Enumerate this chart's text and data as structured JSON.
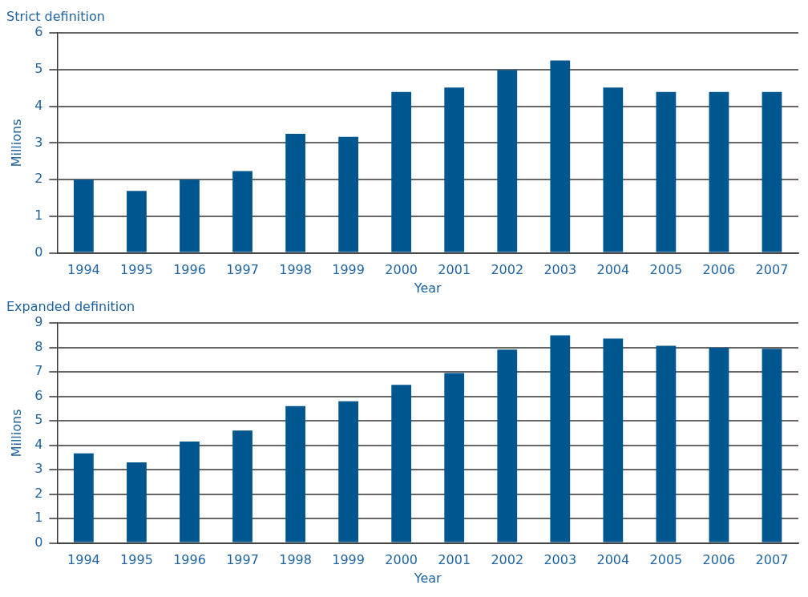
{
  "chart_data": [
    {
      "type": "bar",
      "title": "Strict definition",
      "xlabel": "Year",
      "ylabel": "Millions",
      "categories": [
        "1994",
        "1995",
        "1996",
        "1997",
        "1998",
        "1999",
        "2000",
        "2001",
        "2002",
        "2003",
        "2004",
        "2005",
        "2006",
        "2007"
      ],
      "values": [
        2.0,
        1.69,
        2.0,
        2.23,
        3.25,
        3.17,
        4.39,
        4.51,
        4.99,
        5.25,
        4.51,
        4.39,
        4.39,
        4.39
      ],
      "color": "#00568f",
      "ylim": [
        0,
        6
      ],
      "yticks": [
        0,
        1,
        2,
        3,
        4,
        5,
        6
      ],
      "grid": "y"
    },
    {
      "type": "bar",
      "title": "Expanded definition",
      "xlabel": "Year",
      "ylabel": "Millions",
      "categories": [
        "1994",
        "1995",
        "1996",
        "1997",
        "1998",
        "1999",
        "2000",
        "2001",
        "2002",
        "2003",
        "2004",
        "2005",
        "2006",
        "2007"
      ],
      "values": [
        3.67,
        3.3,
        4.15,
        4.6,
        5.6,
        5.8,
        6.47,
        6.96,
        7.92,
        8.5,
        8.37,
        8.07,
        7.99,
        7.95
      ],
      "color": "#00568f",
      "ylim": [
        0,
        9
      ],
      "yticks": [
        0,
        1,
        2,
        3,
        4,
        5,
        6,
        7,
        8,
        9
      ],
      "grid": "y"
    }
  ]
}
